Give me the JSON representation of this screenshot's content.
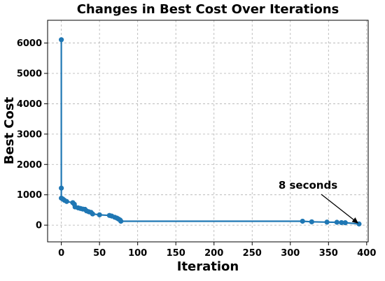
{
  "chart_data": {
    "type": "line",
    "title": "Changes in Best Cost Over Iterations",
    "xlabel": "Iteration",
    "ylabel": "Best Cost",
    "xlim": [
      -18,
      402
    ],
    "ylim": [
      -550,
      6750
    ],
    "grid": true,
    "color": "#1f77b4",
    "x_ticks": [
      0,
      50,
      100,
      150,
      200,
      250,
      300,
      350,
      400
    ],
    "y_ticks": [
      0,
      1000,
      2000,
      3000,
      4000,
      5000,
      6000
    ],
    "x_tick_labels": [
      "0",
      "50",
      "100",
      "150",
      "200",
      "250",
      "300",
      "350",
      "400"
    ],
    "y_tick_labels": [
      "0",
      "1000",
      "2000",
      "3000",
      "4000",
      "5000",
      "6000"
    ],
    "series": [
      {
        "x": [
          0,
          0,
          0,
          2,
          4,
          7,
          15,
          17,
          18,
          22,
          25,
          28,
          31,
          33,
          36,
          39,
          41,
          50,
          63,
          66,
          70,
          73,
          75,
          77,
          78,
          316,
          328,
          348,
          361,
          367,
          372,
          390
        ],
        "y": [
          6110,
          1220,
          890,
          860,
          820,
          780,
          740,
          690,
          600,
          570,
          550,
          530,
          520,
          470,
          440,
          420,
          370,
          340,
          320,
          300,
          260,
          230,
          200,
          170,
          130,
          130,
          110,
          100,
          95,
          85,
          80,
          40
        ]
      }
    ],
    "annotation": {
      "text": "8 seconds",
      "x": 390,
      "y": 40
    }
  }
}
